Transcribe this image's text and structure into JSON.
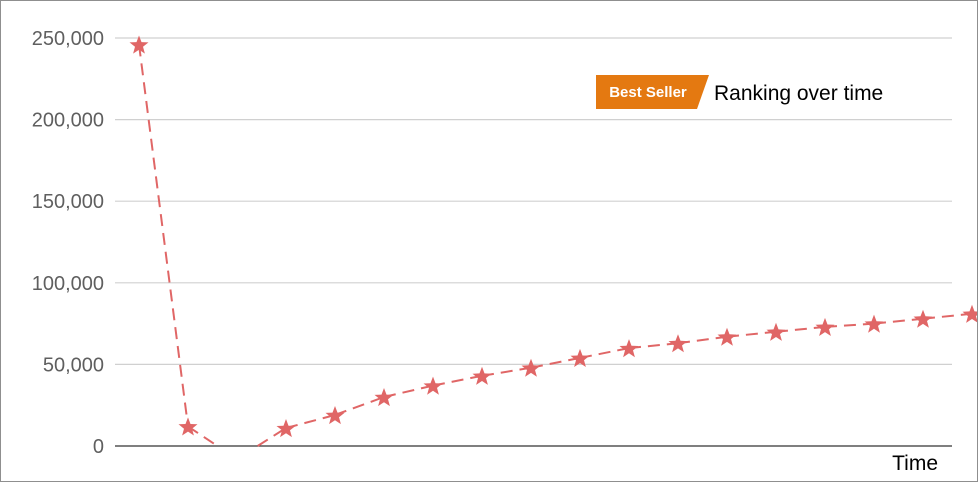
{
  "colors": {
    "series": "#e06666",
    "badge": "#e47911",
    "grid": "#d0d0d0",
    "axis": "#333333"
  },
  "legend": {
    "badge_label": "Best Seller",
    "label": "Ranking over time"
  },
  "chart_data": {
    "type": "line",
    "title": "",
    "xlabel": "Time",
    "ylabel": "",
    "ylim": [
      0,
      250000
    ],
    "yticks": [
      0,
      50000,
      100000,
      150000,
      200000,
      250000
    ],
    "ytick_labels": [
      "0",
      "50,000",
      "100,000",
      "150,000",
      "200,000",
      "250,000"
    ],
    "line_style": "dashed",
    "marker": "star",
    "grid": true,
    "legend_position": "top-right",
    "series": [
      {
        "name": "Ranking over time",
        "values": [
          246000,
          12000,
          -8000,
          11000,
          19000,
          30000,
          37000,
          43000,
          48000,
          54000,
          60000,
          63000,
          67000,
          70000,
          73000,
          75000,
          78000,
          81000
        ],
        "markers": [
          true,
          true,
          false,
          true,
          true,
          true,
          true,
          true,
          true,
          true,
          true,
          true,
          true,
          true,
          true,
          true,
          true,
          true
        ]
      }
    ]
  }
}
